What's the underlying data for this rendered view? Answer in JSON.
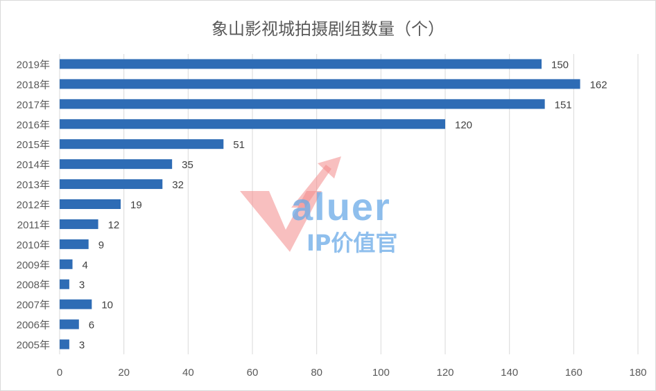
{
  "chart_data": {
    "type": "bar",
    "orientation": "horizontal",
    "title": "象山影视城拍摄剧组数量（个）",
    "categories": [
      "2019年",
      "2018年",
      "2017年",
      "2016年",
      "2015年",
      "2014年",
      "2013年",
      "2012年",
      "2011年",
      "2010年",
      "2009年",
      "2008年",
      "2007年",
      "2006年",
      "2005年"
    ],
    "values": [
      150,
      162,
      151,
      120,
      51,
      35,
      32,
      19,
      12,
      9,
      4,
      3,
      10,
      6,
      3
    ],
    "xlim": [
      0,
      180
    ],
    "xticks": [
      0,
      20,
      40,
      60,
      80,
      100,
      120,
      140,
      160,
      180
    ],
    "grid": true,
    "bar_color": "#2e6cb5",
    "grid_color": "#d9d9d9"
  },
  "watermark": {
    "brand_word": "aluer",
    "sub_text": "IP价值官",
    "v_color": "#f28b8b",
    "text_color": "#6aaae8"
  }
}
